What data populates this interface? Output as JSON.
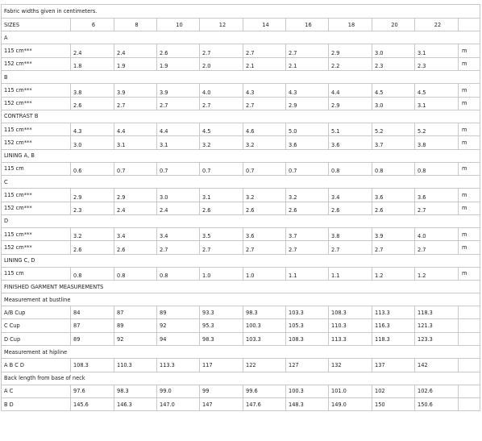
{
  "note": "Fabric widths given in centimeters.",
  "sizes_label": "SIZES",
  "sizes": [
    "6",
    "8",
    "10",
    "12",
    "14",
    "16",
    "18",
    "20",
    "22"
  ],
  "sections": [
    {
      "title": "A",
      "rows": [
        {
          "label": "115 cm***",
          "values": [
            "2.4",
            "2.4",
            "2.6",
            "2.7",
            "2.7",
            "2.7",
            "2.9",
            "3.0",
            "3.1"
          ],
          "unit": "m"
        },
        {
          "label": "152 cm***",
          "values": [
            "1.8",
            "1.9",
            "1.9",
            "2.0",
            "2.1",
            "2.1",
            "2.2",
            "2.3",
            "2.3"
          ],
          "unit": "m"
        }
      ]
    },
    {
      "title": "B",
      "rows": [
        {
          "label": "115 cm***",
          "values": [
            "3.8",
            "3.9",
            "3.9",
            "4.0",
            "4.3",
            "4.3",
            "4.4",
            "4.5",
            "4.5"
          ],
          "unit": "m"
        },
        {
          "label": "152 cm***",
          "values": [
            "2.6",
            "2.7",
            "2.7",
            "2.7",
            "2.7",
            "2.9",
            "2.9",
            "3.0",
            "3.1"
          ],
          "unit": "m"
        }
      ]
    },
    {
      "title": "CONTRAST B",
      "rows": [
        {
          "label": "115 cm***",
          "values": [
            "4.3",
            "4.4",
            "4.4",
            "4.5",
            "4.6",
            "5.0",
            "5.1",
            "5.2",
            "5.2"
          ],
          "unit": "m"
        },
        {
          "label": "152 cm***",
          "values": [
            "3.0",
            "3.1",
            "3.1",
            "3.2",
            "3.2",
            "3.6",
            "3.6",
            "3.7",
            "3.8"
          ],
          "unit": "m"
        }
      ]
    },
    {
      "title": "LINING A, B",
      "rows": [
        {
          "label": "115 cm",
          "values": [
            "0.6",
            "0.7",
            "0.7",
            "0.7",
            "0.7",
            "0.7",
            "0.8",
            "0.8",
            "0.8"
          ],
          "unit": "m"
        }
      ]
    },
    {
      "title": "C",
      "rows": [
        {
          "label": "115 cm***",
          "values": [
            "2.9",
            "2.9",
            "3.0",
            "3.1",
            "3.2",
            "3.2",
            "3.4",
            "3.6",
            "3.6"
          ],
          "unit": "m"
        },
        {
          "label": "152 cm***",
          "values": [
            "2.3",
            "2.4",
            "2.4",
            "2.6",
            "2.6",
            "2.6",
            "2.6",
            "2.6",
            "2.7"
          ],
          "unit": "m"
        }
      ]
    },
    {
      "title": "D",
      "rows": [
        {
          "label": "115 cm***",
          "values": [
            "3.2",
            "3.4",
            "3.4",
            "3.5",
            "3.6",
            "3.7",
            "3.8",
            "3.9",
            "4.0"
          ],
          "unit": "m"
        },
        {
          "label": "152 cm***",
          "values": [
            "2.6",
            "2.6",
            "2.7",
            "2.7",
            "2.7",
            "2.7",
            "2.7",
            "2.7",
            "2.7"
          ],
          "unit": "m"
        }
      ]
    },
    {
      "title": "LINING C, D",
      "rows": [
        {
          "label": "115 cm",
          "values": [
            "0.8",
            "0.8",
            "0.8",
            "1.0",
            "1.0",
            "1.1",
            "1.1",
            "1.2",
            "1.2"
          ],
          "unit": "m"
        }
      ]
    }
  ],
  "finished_title": "FINISHED GARMENT MEASUREMENTS",
  "measurements": [
    {
      "title": "Measurement at bustline",
      "rows": [
        {
          "label": "A/B Cup",
          "values": [
            "84",
            "87",
            "89",
            "93.3",
            "98.3",
            "103.3",
            "108.3",
            "113.3",
            "118.3"
          ]
        },
        {
          "label": "C Cup",
          "values": [
            "87",
            "89",
            "92",
            "95.3",
            "100.3",
            "105.3",
            "110.3",
            "116.3",
            "121.3"
          ]
        },
        {
          "label": "D Cup",
          "values": [
            "89",
            "92",
            "94",
            "98.3",
            "103.3",
            "108.3",
            "113.3",
            "118.3",
            "123.3"
          ]
        }
      ]
    },
    {
      "title": "Measurement at hipline",
      "rows": [
        {
          "label": "A B C D",
          "values": [
            "108.3",
            "110.3",
            "113.3",
            "117",
            "122",
            "127",
            "132",
            "137",
            "142"
          ]
        }
      ]
    },
    {
      "title": "Back length from base of neck",
      "rows": [
        {
          "label": "A C",
          "values": [
            "97.6",
            "98.3",
            "99.0",
            "99",
            "99.6",
            "100.3",
            "101.0",
            "102",
            "102.6"
          ]
        },
        {
          "label": "B D",
          "values": [
            "145.6",
            "146.3",
            "147.0",
            "147",
            "147.6",
            "148.3",
            "149.0",
            "150",
            "150.6"
          ]
        }
      ]
    }
  ]
}
